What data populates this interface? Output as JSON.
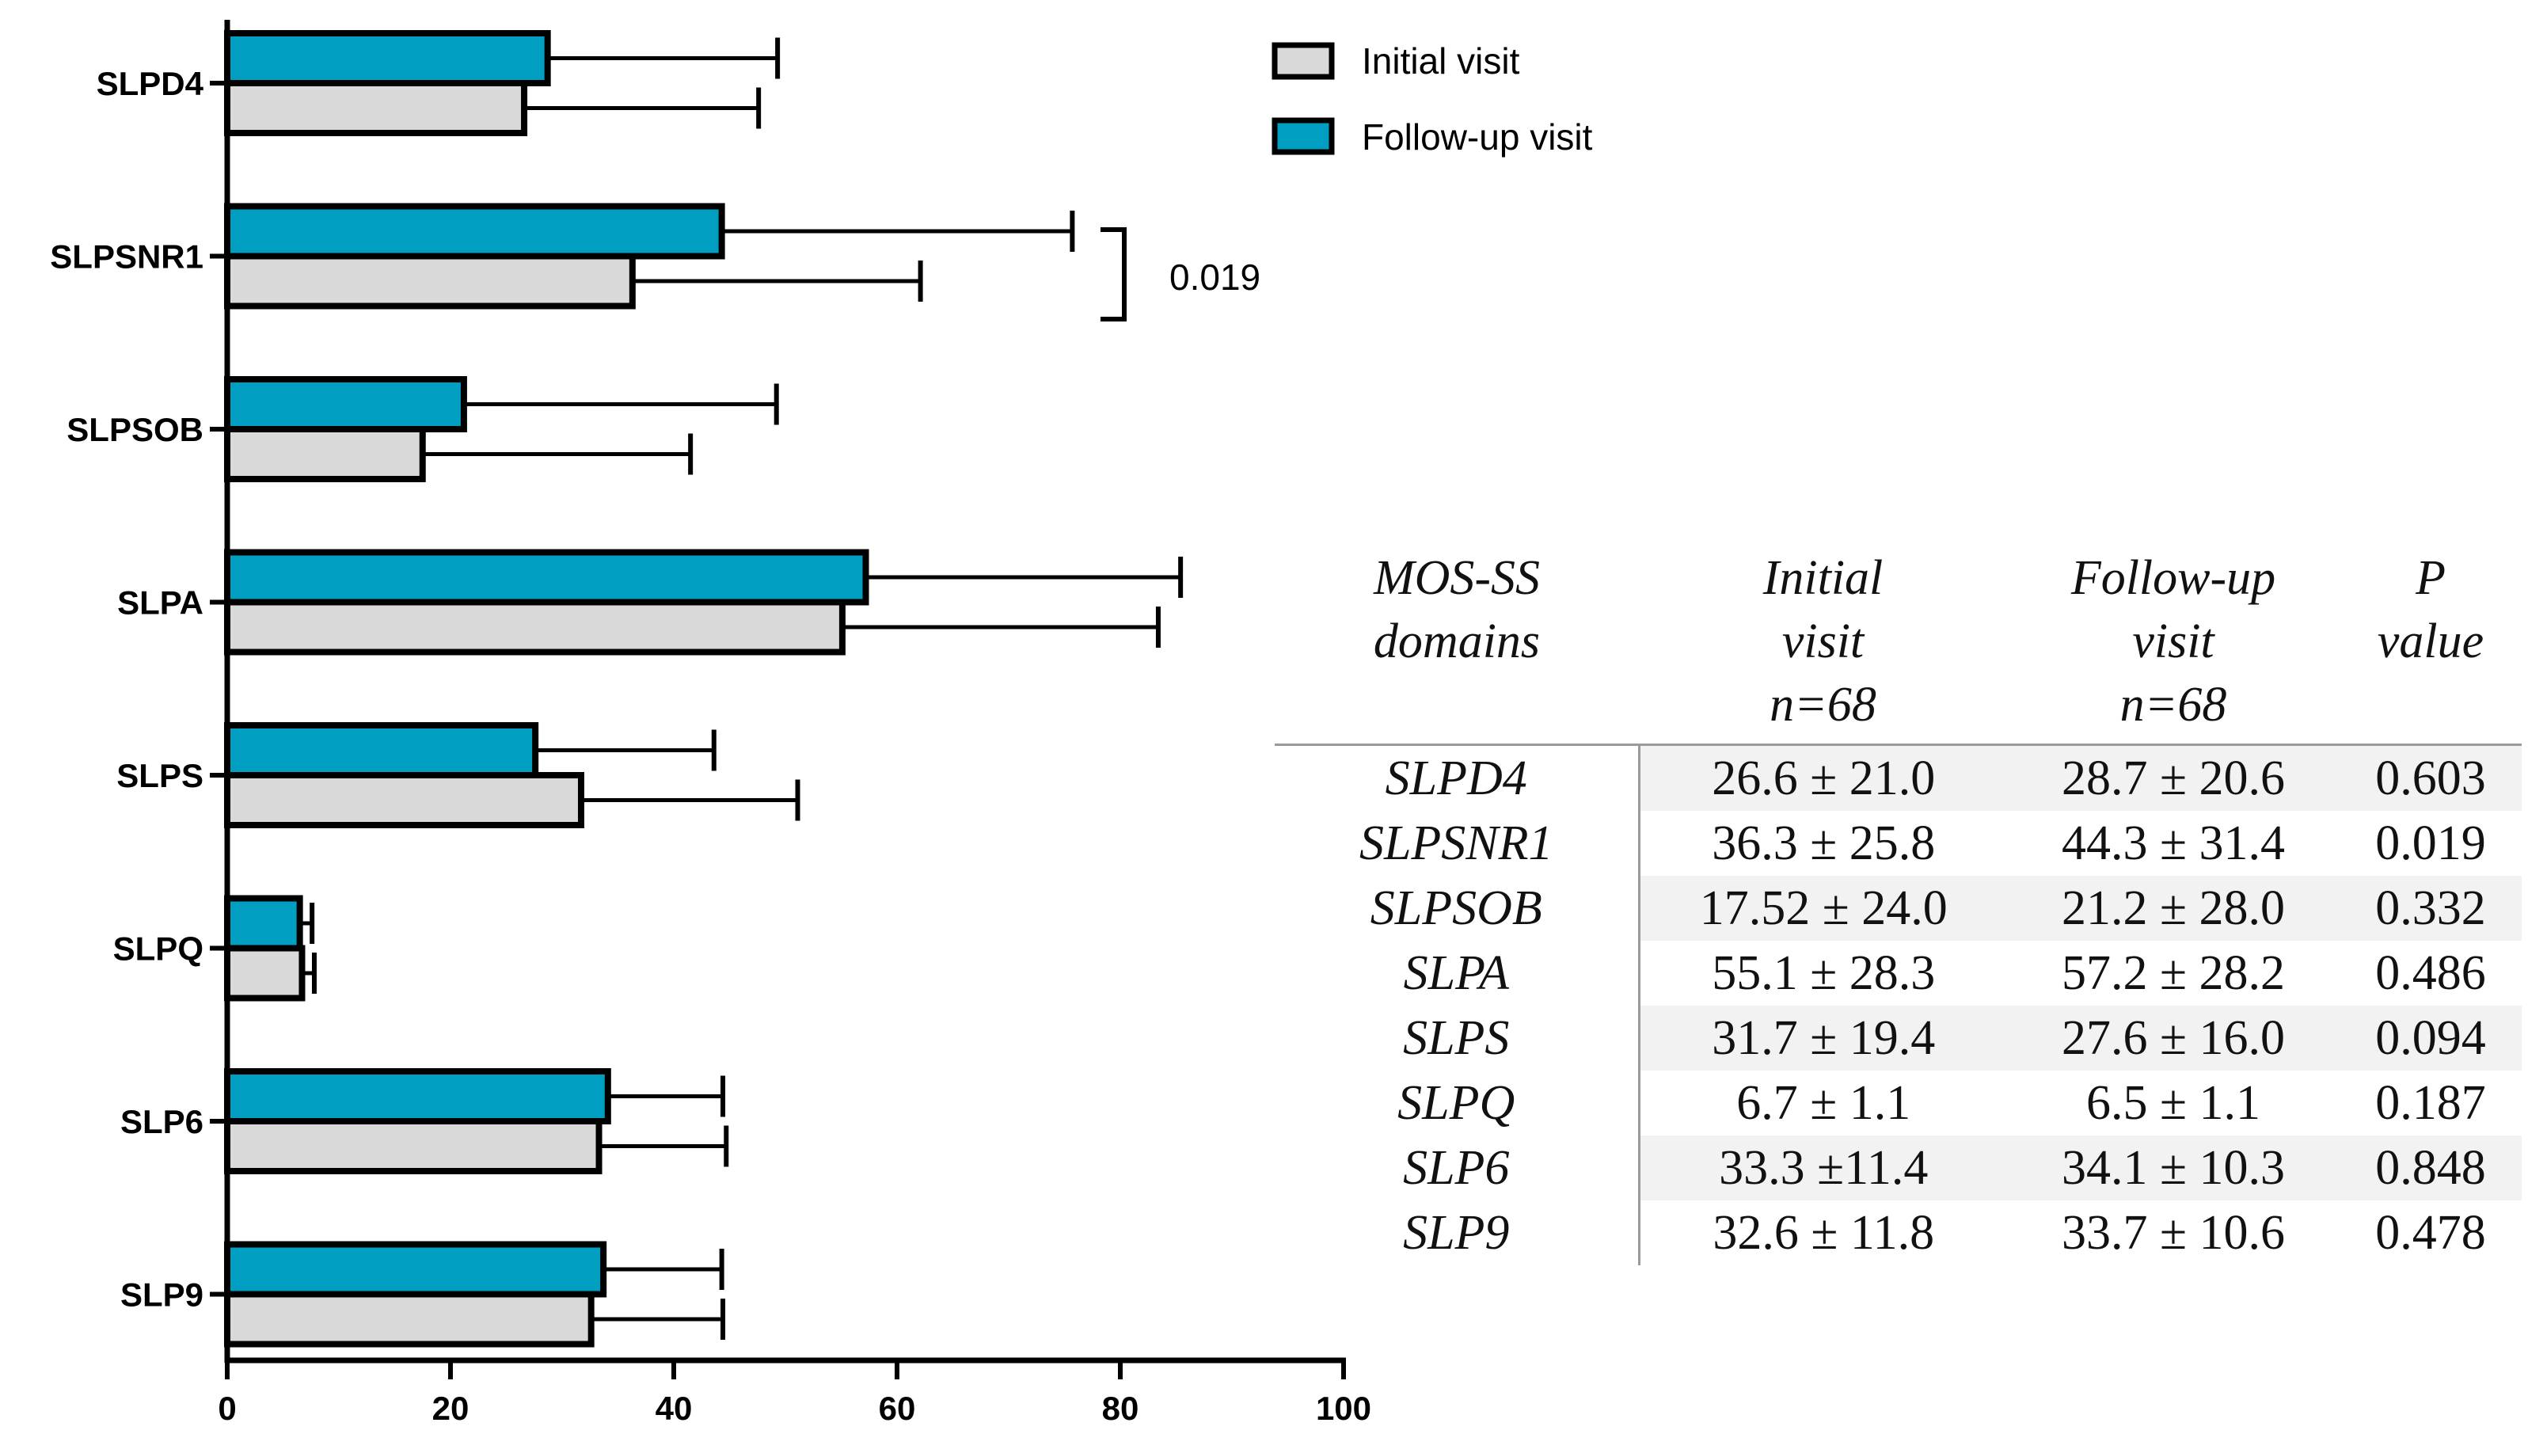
{
  "chart_data": {
    "type": "bar",
    "orientation": "horizontal",
    "categories": [
      "SLPD4",
      "SLPSNR1",
      "SLPSOB",
      "SLPA",
      "SLPS",
      "SLPQ",
      "SLP6",
      "SLP9"
    ],
    "series": [
      {
        "name": "Initial visit",
        "color": "#d9d9d9",
        "values": [
          26.6,
          36.3,
          17.5,
          55.1,
          31.7,
          6.7,
          33.3,
          32.6
        ],
        "errors": [
          21.0,
          25.8,
          24.0,
          28.3,
          19.4,
          1.1,
          11.4,
          11.8
        ]
      },
      {
        "name": "Follow-up visit",
        "color": "#009fc2",
        "values": [
          28.7,
          44.3,
          21.2,
          57.2,
          27.6,
          6.5,
          34.1,
          33.7
        ],
        "errors": [
          20.6,
          31.4,
          28.0,
          28.2,
          16.0,
          1.1,
          10.3,
          10.6
        ]
      }
    ],
    "xlim": [
      0,
      100
    ],
    "xticks": [
      "0",
      "20",
      "40",
      "60",
      "80",
      "100"
    ],
    "xlabel": "",
    "ylabel": "",
    "title": "",
    "legend": [
      "Initial visit",
      "Follow-up visit"
    ],
    "legend_position": "top-right",
    "annotations": [
      {
        "category": "SLPSNR1",
        "text": "0.019"
      }
    ]
  },
  "table": {
    "headers": [
      [
        "MOS-SS",
        "domains"
      ],
      [
        "Initial",
        "visit",
        "n=68"
      ],
      [
        "Follow-up",
        "visit",
        "n=68"
      ],
      [
        "P",
        "value"
      ]
    ],
    "rows": [
      [
        "SLPD4",
        "26.6 ± 21.0",
        "28.7 ± 20.6",
        "0.603"
      ],
      [
        "SLPSNR1",
        "36.3 ± 25.8",
        "44.3 ± 31.4",
        "0.019"
      ],
      [
        "SLPSOB",
        "17.52 ± 24.0",
        "21.2 ± 28.0",
        "0.332"
      ],
      [
        "SLPA",
        "55.1 ± 28.3",
        "57.2 ± 28.2",
        "0.486"
      ],
      [
        "SLPS",
        "31.7 ± 19.4",
        "27.6 ± 16.0",
        "0.094"
      ],
      [
        "SLPQ",
        "6.7 ± 1.1",
        "6.5 ± 1.1",
        "0.187"
      ],
      [
        "SLP6",
        "33.3 ±11.4",
        "34.1 ± 10.3",
        "0.848"
      ],
      [
        "SLP9",
        "32.6 ± 11.8",
        "33.7 ± 10.6",
        "0.478"
      ]
    ]
  }
}
